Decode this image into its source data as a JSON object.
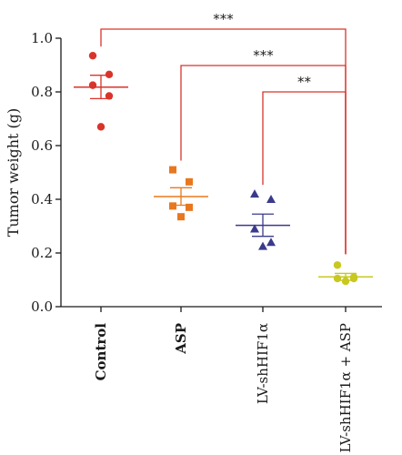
{
  "chart_data": {
    "type": "scatter",
    "ylabel": "Tumor weight (g)",
    "ylim": [
      0,
      1.0
    ],
    "yticks": [
      "0.0",
      "0.2",
      "0.4",
      "0.6",
      "0.8",
      "1.0"
    ],
    "groups": [
      {
        "label": "Control",
        "bold": true,
        "marker": "circle",
        "color": "#d9342b",
        "points": [
          0.935,
          0.865,
          0.825,
          0.785,
          0.67
        ],
        "mean": 0.818,
        "sem_low": 0.775,
        "sem_high": 0.862
      },
      {
        "label": "ASP",
        "bold": true,
        "marker": "square",
        "color": "#e8781e",
        "points": [
          0.51,
          0.465,
          0.375,
          0.37,
          0.335
        ],
        "mean": 0.41,
        "sem_low": 0.378,
        "sem_high": 0.443
      },
      {
        "label": "LV-shHIF1α",
        "bold": false,
        "marker": "triangle",
        "color": "#3a3a8c",
        "points": [
          0.42,
          0.4,
          0.29,
          0.24,
          0.225
        ],
        "mean": 0.303,
        "sem_low": 0.262,
        "sem_high": 0.345
      },
      {
        "label": "LV-shHIF1α + ASP",
        "bold": false,
        "marker": "circle",
        "color": "#c8c81e",
        "points": [
          0.155,
          0.11,
          0.105,
          0.105,
          0.095
        ],
        "mean": 0.111,
        "sem_low": 0.098,
        "sem_high": 0.124
      }
    ],
    "significance": [
      {
        "from": "Control",
        "to": "LV-shHIF1α + ASP",
        "label": "***"
      },
      {
        "from": "ASP",
        "to": "LV-shHIF1α + ASP",
        "label": "***"
      },
      {
        "from": "LV-shHIF1α",
        "to": "LV-shHIF1α + ASP",
        "label": "**"
      }
    ],
    "bracket_color": "#d9342b",
    "axis_color": "#1a1a1a"
  }
}
